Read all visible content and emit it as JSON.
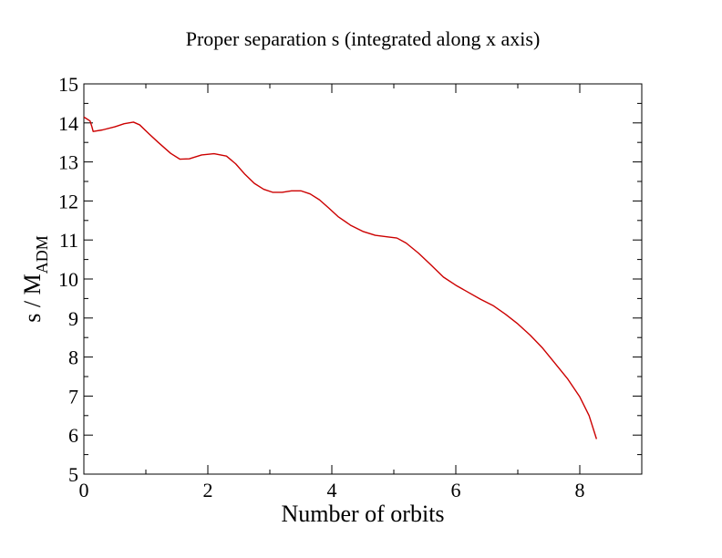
{
  "chart_data": {
    "type": "line",
    "title": "Proper separation s (integrated along x axis)",
    "xlabel": "Number of orbits",
    "ylabel": {
      "main": "s / M",
      "subscript": "ADM"
    },
    "xlim": [
      0,
      9
    ],
    "ylim": [
      5,
      15
    ],
    "x_ticks": [
      "0",
      "2",
      "4",
      "6",
      "8"
    ],
    "y_ticks": [
      "5",
      "6",
      "7",
      "8",
      "9",
      "10",
      "11",
      "12",
      "13",
      "14",
      "15"
    ],
    "grid": false,
    "legend": "none",
    "series": [
      {
        "color": "#cc0000",
        "x": [
          0.0,
          0.05,
          0.1,
          0.13,
          0.15,
          0.3,
          0.5,
          0.65,
          0.8,
          0.9,
          1.05,
          1.2,
          1.4,
          1.55,
          1.7,
          1.9,
          2.1,
          2.3,
          2.45,
          2.6,
          2.75,
          2.9,
          3.05,
          3.2,
          3.35,
          3.5,
          3.65,
          3.8,
          3.95,
          4.1,
          4.3,
          4.5,
          4.7,
          4.9,
          5.05,
          5.2,
          5.4,
          5.6,
          5.8,
          6.0,
          6.2,
          6.4,
          6.6,
          6.8,
          7.0,
          7.2,
          7.4,
          7.6,
          7.8,
          8.0,
          8.15,
          8.27
        ],
        "y": [
          14.15,
          14.1,
          14.05,
          13.9,
          13.78,
          13.82,
          13.9,
          13.98,
          14.02,
          13.95,
          13.72,
          13.5,
          13.22,
          13.07,
          13.08,
          13.18,
          13.21,
          13.15,
          12.95,
          12.68,
          12.45,
          12.3,
          12.22,
          12.22,
          12.26,
          12.26,
          12.18,
          12.03,
          11.82,
          11.6,
          11.38,
          11.22,
          11.12,
          11.08,
          11.05,
          10.92,
          10.66,
          10.36,
          10.05,
          9.84,
          9.66,
          9.48,
          9.32,
          9.1,
          8.85,
          8.56,
          8.23,
          7.84,
          7.45,
          6.98,
          6.5,
          5.9
        ]
      }
    ]
  }
}
